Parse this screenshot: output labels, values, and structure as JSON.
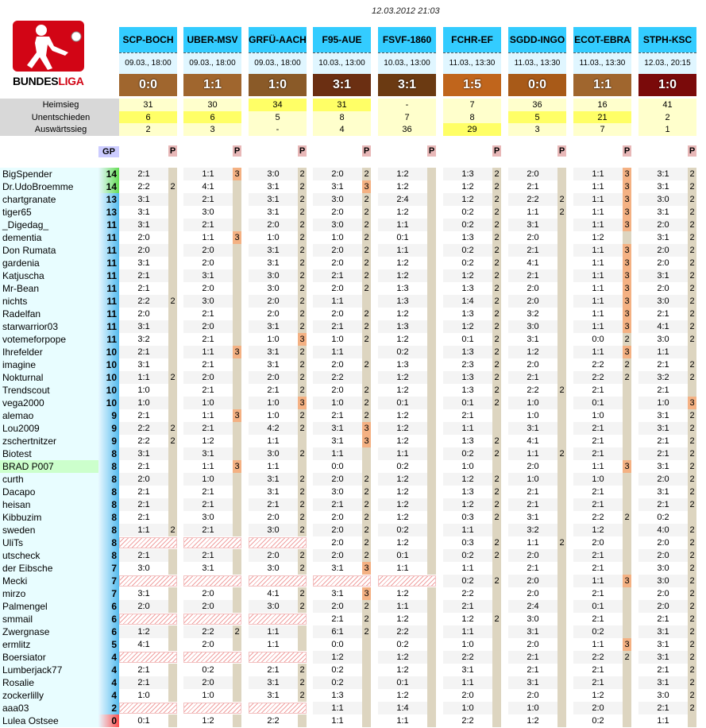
{
  "timestamp": "12.03.2012 21:03",
  "logo": {
    "word1": "BUNDES",
    "word2": "LIGA"
  },
  "matches": [
    {
      "code": "SCP-BOCH",
      "date": "09.03., 18:00",
      "result": "0:0",
      "color": "#a0662e"
    },
    {
      "code": "UBER-MSV",
      "date": "09.03., 18:00",
      "result": "1:1",
      "color": "#a0662e"
    },
    {
      "code": "GRFÜ-AACH",
      "date": "09.03., 18:00",
      "result": "1:0",
      "color": "#8a5a28"
    },
    {
      "code": "F95-AUE",
      "date": "10.03., 13:00",
      "result": "3:1",
      "color": "#6b2f12"
    },
    {
      "code": "FSVF-1860",
      "date": "10.03., 13:00",
      "result": "3:1",
      "color": "#6b3a12"
    },
    {
      "code": "FCHR-EF",
      "date": "11.03., 13:30",
      "result": "1:5",
      "color": "#c0651c"
    },
    {
      "code": "SGDD-INGO",
      "date": "11.03., 13:30",
      "result": "0:0",
      "color": "#a85a18"
    },
    {
      "code": "ECOT-EBRA",
      "date": "11.03., 13:30",
      "result": "1:1",
      "color": "#a0662e"
    },
    {
      "code": "STPH-KSC",
      "date": "12.03., 20:15",
      "result": "1:0",
      "color": "#7a0a0a"
    }
  ],
  "stats": {
    "labels": [
      "Heimsieg",
      "Unentschieden",
      "Auswärtssieg"
    ],
    "values": [
      [
        "31",
        "30",
        "34",
        "31",
        "-",
        "7",
        "36",
        "16",
        "41"
      ],
      [
        "6",
        "6",
        "5",
        "8",
        "7",
        "8",
        "5",
        "21",
        "2"
      ],
      [
        "2",
        "3",
        "-",
        "4",
        "36",
        "29",
        "3",
        "7",
        "1"
      ]
    ],
    "highlight": [
      [
        0,
        0,
        1,
        1,
        0,
        0,
        0,
        0,
        0
      ],
      [
        1,
        1,
        0,
        0,
        0,
        0,
        1,
        1,
        0
      ],
      [
        0,
        0,
        0,
        0,
        0,
        1,
        0,
        0,
        0
      ]
    ]
  },
  "headers": {
    "gp": "GP",
    "p": "P"
  },
  "players": [
    {
      "name": "BigSpender",
      "gp": "14",
      "tips": [
        "2:1",
        "1:1",
        "3:0",
        "2:0",
        "1:2",
        "1:3",
        "2:0",
        "1:1",
        "3:1"
      ],
      "pts": [
        "",
        "3",
        "2",
        "2",
        "",
        "2",
        "",
        "3",
        "2"
      ]
    },
    {
      "name": "Dr.UdoBroemme",
      "gp": "14",
      "tips": [
        "2:2",
        "4:1",
        "3:1",
        "3:1",
        "1:2",
        "1:2",
        "2:1",
        "1:1",
        "3:1"
      ],
      "pts": [
        "2",
        "",
        "2",
        "3",
        "",
        "2",
        "",
        "3",
        "2"
      ]
    },
    {
      "name": "chartgranate",
      "gp": "13",
      "tips": [
        "3:1",
        "2:1",
        "3:1",
        "3:0",
        "2:4",
        "1:2",
        "2:2",
        "1:1",
        "3:0"
      ],
      "pts": [
        "",
        "",
        "2",
        "2",
        "",
        "2",
        "2",
        "3",
        "2"
      ]
    },
    {
      "name": "tiger65",
      "gp": "13",
      "tips": [
        "3:1",
        "3:0",
        "3:1",
        "2:0",
        "1:2",
        "0:2",
        "1:1",
        "1:1",
        "3:1"
      ],
      "pts": [
        "",
        "",
        "2",
        "2",
        "",
        "2",
        "2",
        "3",
        "2"
      ]
    },
    {
      "name": "_Digedag_",
      "gp": "11",
      "tips": [
        "3:1",
        "2:1",
        "2:0",
        "3:0",
        "1:1",
        "0:2",
        "3:1",
        "1:1",
        "2:0"
      ],
      "pts": [
        "",
        "",
        "2",
        "2",
        "",
        "2",
        "",
        "3",
        "2"
      ]
    },
    {
      "name": "dementia",
      "gp": "11",
      "tips": [
        "2:0",
        "1:1",
        "1:0",
        "1:0",
        "0:1",
        "1:3",
        "2:0",
        "1:2",
        "3:1"
      ],
      "pts": [
        "",
        "3",
        "2",
        "2",
        "",
        "2",
        "",
        "",
        "2"
      ]
    },
    {
      "name": "Don Rumata",
      "gp": "11",
      "tips": [
        "2:0",
        "2:0",
        "3:1",
        "2:0",
        "1:1",
        "0:2",
        "2:1",
        "1:1",
        "2:0"
      ],
      "pts": [
        "",
        "",
        "2",
        "2",
        "",
        "2",
        "",
        "3",
        "2"
      ]
    },
    {
      "name": "gardenia",
      "gp": "11",
      "tips": [
        "3:1",
        "2:0",
        "3:1",
        "2:0",
        "1:2",
        "0:2",
        "4:1",
        "1:1",
        "2:0"
      ],
      "pts": [
        "",
        "",
        "2",
        "2",
        "",
        "2",
        "",
        "3",
        "2"
      ]
    },
    {
      "name": "Katjuscha",
      "gp": "11",
      "tips": [
        "2:1",
        "3:1",
        "3:0",
        "2:1",
        "1:2",
        "1:2",
        "2:1",
        "1:1",
        "3:1"
      ],
      "pts": [
        "",
        "",
        "2",
        "2",
        "",
        "2",
        "",
        "3",
        "2"
      ]
    },
    {
      "name": "Mr-Bean",
      "gp": "11",
      "tips": [
        "2:1",
        "2:0",
        "3:0",
        "2:0",
        "1:3",
        "1:3",
        "2:0",
        "1:1",
        "2:0"
      ],
      "pts": [
        "",
        "",
        "2",
        "2",
        "",
        "2",
        "",
        "3",
        "2"
      ]
    },
    {
      "name": "nichts",
      "gp": "11",
      "tips": [
        "2:2",
        "3:0",
        "2:0",
        "1:1",
        "1:3",
        "1:4",
        "2:0",
        "1:1",
        "3:0"
      ],
      "pts": [
        "2",
        "",
        "2",
        "",
        "",
        "2",
        "",
        "3",
        "2"
      ]
    },
    {
      "name": "Radelfan",
      "gp": "11",
      "tips": [
        "2:0",
        "2:1",
        "2:0",
        "2:0",
        "1:2",
        "1:3",
        "3:2",
        "1:1",
        "2:1"
      ],
      "pts": [
        "",
        "",
        "2",
        "2",
        "",
        "2",
        "",
        "3",
        "2"
      ]
    },
    {
      "name": "starwarrior03",
      "gp": "11",
      "tips": [
        "3:1",
        "2:0",
        "3:1",
        "2:1",
        "1:3",
        "1:2",
        "3:0",
        "1:1",
        "4:1"
      ],
      "pts": [
        "",
        "",
        "2",
        "2",
        "",
        "2",
        "",
        "3",
        "2"
      ]
    },
    {
      "name": "votemeforpope",
      "gp": "11",
      "tips": [
        "3:2",
        "2:1",
        "1:0",
        "1:0",
        "1:2",
        "0:1",
        "3:1",
        "0:0",
        "3:0"
      ],
      "pts": [
        "",
        "",
        "3",
        "2",
        "",
        "2",
        "",
        "2",
        "2"
      ]
    },
    {
      "name": "Ihrefelder",
      "gp": "10",
      "tips": [
        "2:1",
        "1:1",
        "3:1",
        "1:1",
        "0:2",
        "1:3",
        "1:2",
        "1:1",
        "1:1"
      ],
      "pts": [
        "",
        "3",
        "2",
        "",
        "",
        "2",
        "",
        "3",
        ""
      ]
    },
    {
      "name": "imagine",
      "gp": "10",
      "tips": [
        "3:1",
        "2:1",
        "3:1",
        "2:0",
        "1:3",
        "2:3",
        "2:0",
        "2:2",
        "2:1"
      ],
      "pts": [
        "",
        "",
        "2",
        "2",
        "",
        "2",
        "",
        "2",
        "2"
      ]
    },
    {
      "name": "Nokturnal",
      "gp": "10",
      "tips": [
        "1:1",
        "2:0",
        "2:0",
        "2:2",
        "1:2",
        "1:3",
        "2:1",
        "2:2",
        "3:2"
      ],
      "pts": [
        "2",
        "",
        "2",
        "",
        "",
        "2",
        "",
        "2",
        "2"
      ]
    },
    {
      "name": "Trendscout",
      "gp": "10",
      "tips": [
        "1:0",
        "2:1",
        "2:1",
        "2:0",
        "1:2",
        "1:3",
        "2:2",
        "2:1",
        "2:1"
      ],
      "pts": [
        "",
        "",
        "2",
        "2",
        "",
        "2",
        "2",
        "",
        ""
      ]
    },
    {
      "name": "vega2000",
      "gp": "10",
      "tips": [
        "1:0",
        "1:0",
        "1:0",
        "1:0",
        "0:1",
        "0:1",
        "1:0",
        "0:1",
        "1:0"
      ],
      "pts": [
        "",
        "",
        "3",
        "2",
        "",
        "2",
        "",
        "",
        "3"
      ]
    },
    {
      "name": "alemao",
      "gp": "9",
      "tips": [
        "2:1",
        "1:1",
        "1:0",
        "2:1",
        "1:2",
        "2:1",
        "1:0",
        "1:0",
        "3:1"
      ],
      "pts": [
        "",
        "3",
        "2",
        "2",
        "",
        "",
        "",
        "",
        "2"
      ]
    },
    {
      "name": "Lou2009",
      "gp": "9",
      "tips": [
        "2:2",
        "2:1",
        "4:2",
        "3:1",
        "1:2",
        "1:1",
        "3:1",
        "2:1",
        "3:1"
      ],
      "pts": [
        "2",
        "",
        "2",
        "3",
        "",
        "",
        "",
        "",
        "2"
      ]
    },
    {
      "name": "zschertnitzer",
      "gp": "9",
      "tips": [
        "2:2",
        "1:2",
        "1:1",
        "3:1",
        "1:2",
        "1:3",
        "4:1",
        "2:1",
        "2:1"
      ],
      "pts": [
        "2",
        "",
        "",
        "3",
        "",
        "2",
        "",
        "",
        "2"
      ]
    },
    {
      "name": "Biotest",
      "gp": "8",
      "tips": [
        "3:1",
        "3:1",
        "3:0",
        "1:1",
        "1:1",
        "0:2",
        "1:1",
        "2:1",
        "2:1"
      ],
      "pts": [
        "",
        "",
        "2",
        "",
        "",
        "2",
        "2",
        "",
        "2"
      ]
    },
    {
      "name": "BRAD P007",
      "gp": "8",
      "tips": [
        "2:1",
        "1:1",
        "1:1",
        "0:0",
        "0:2",
        "1:0",
        "2:0",
        "1:1",
        "3:1"
      ],
      "pts": [
        "",
        "3",
        "",
        "",
        "",
        "",
        "",
        "3",
        "2"
      ],
      "green": true
    },
    {
      "name": "curth",
      "gp": "8",
      "tips": [
        "2:0",
        "1:0",
        "3:1",
        "2:0",
        "1:2",
        "1:2",
        "1:0",
        "1:0",
        "2:0"
      ],
      "pts": [
        "",
        "",
        "2",
        "2",
        "",
        "2",
        "",
        "",
        "2"
      ]
    },
    {
      "name": "Dacapo",
      "gp": "8",
      "tips": [
        "2:1",
        "2:1",
        "3:1",
        "3:0",
        "1:2",
        "1:3",
        "2:1",
        "2:1",
        "3:1"
      ],
      "pts": [
        "",
        "",
        "2",
        "2",
        "",
        "2",
        "",
        "",
        "2"
      ]
    },
    {
      "name": "heisan",
      "gp": "8",
      "tips": [
        "2:1",
        "2:1",
        "2:1",
        "2:1",
        "1:2",
        "1:2",
        "2:1",
        "2:1",
        "2:1"
      ],
      "pts": [
        "",
        "",
        "2",
        "2",
        "",
        "2",
        "",
        "",
        "2"
      ]
    },
    {
      "name": "Kibbuzim",
      "gp": "8",
      "tips": [
        "2:1",
        "3:0",
        "2:0",
        "2:0",
        "1:2",
        "0:3",
        "3:1",
        "2:2",
        "0:2"
      ],
      "pts": [
        "",
        "",
        "2",
        "2",
        "",
        "2",
        "",
        "2",
        ""
      ]
    },
    {
      "name": "sweden",
      "gp": "8",
      "tips": [
        "1:1",
        "2:1",
        "3:0",
        "2:0",
        "0:2",
        "1:1",
        "3:2",
        "1:2",
        "4:0"
      ],
      "pts": [
        "2",
        "",
        "2",
        "2",
        "",
        "",
        "",
        "",
        "2"
      ]
    },
    {
      "name": "UliTs",
      "gp": "8",
      "tips": [
        "",
        "",
        "",
        "2:0",
        "1:2",
        "0:3",
        "1:1",
        "2:0",
        "2:0"
      ],
      "pts": [
        "",
        "",
        "",
        "2",
        "",
        "2",
        "2",
        "",
        "2"
      ],
      "missing": [
        0,
        1,
        2
      ]
    },
    {
      "name": "utscheck",
      "gp": "8",
      "tips": [
        "2:1",
        "2:1",
        "2:0",
        "2:0",
        "0:1",
        "0:2",
        "2:0",
        "2:1",
        "2:0"
      ],
      "pts": [
        "",
        "",
        "2",
        "2",
        "",
        "2",
        "",
        "",
        "2"
      ]
    },
    {
      "name": "der Eibsche",
      "gp": "7",
      "tips": [
        "3:0",
        "3:1",
        "3:0",
        "3:1",
        "1:1",
        "1:1",
        "2:1",
        "2:1",
        "3:0"
      ],
      "pts": [
        "",
        "",
        "2",
        "3",
        "",
        "",
        "",
        "",
        "2"
      ]
    },
    {
      "name": "Mecki",
      "gp": "7",
      "tips": [
        "",
        "",
        "",
        "",
        "",
        "0:2",
        "2:0",
        "1:1",
        "3:0"
      ],
      "pts": [
        "",
        "",
        "",
        "",
        "",
        "2",
        "",
        "3",
        "2"
      ],
      "missing": [
        0,
        1,
        2,
        3,
        4
      ]
    },
    {
      "name": "mirzo",
      "gp": "7",
      "tips": [
        "3:1",
        "2:0",
        "4:1",
        "3:1",
        "1:2",
        "2:2",
        "2:0",
        "2:1",
        "2:0"
      ],
      "pts": [
        "",
        "",
        "2",
        "3",
        "",
        "",
        "",
        "",
        "2"
      ]
    },
    {
      "name": "Palmengel",
      "gp": "6",
      "tips": [
        "2:0",
        "2:0",
        "3:0",
        "2:0",
        "1:1",
        "2:1",
        "2:4",
        "0:1",
        "2:0"
      ],
      "pts": [
        "",
        "",
        "2",
        "2",
        "",
        "",
        "",
        "",
        "2"
      ]
    },
    {
      "name": "smmail",
      "gp": "6",
      "tips": [
        "",
        "",
        "",
        "2:1",
        "1:2",
        "1:2",
        "3:0",
        "2:1",
        "2:1"
      ],
      "pts": [
        "",
        "",
        "",
        "2",
        "",
        "2",
        "",
        "",
        "2"
      ],
      "missing": [
        0,
        1,
        2
      ]
    },
    {
      "name": "Zwergnase",
      "gp": "6",
      "tips": [
        "1:2",
        "2:2",
        "1:1",
        "6:1",
        "2:2",
        "1:1",
        "3:1",
        "0:2",
        "3:1"
      ],
      "pts": [
        "",
        "2",
        "",
        "2",
        "",
        "",
        "",
        "",
        "2"
      ]
    },
    {
      "name": "ermlitz",
      "gp": "5",
      "tips": [
        "4:1",
        "2:0",
        "1:1",
        "0:0",
        "0:2",
        "1:0",
        "2:0",
        "1:1",
        "3:1"
      ],
      "pts": [
        "",
        "",
        "",
        "",
        "",
        "",
        "",
        "3",
        "2"
      ]
    },
    {
      "name": "Boersiator",
      "gp": "4",
      "tips": [
        "",
        "",
        "",
        "1:2",
        "1:2",
        "2:2",
        "2:1",
        "2:2",
        "3:1"
      ],
      "pts": [
        "",
        "",
        "",
        "",
        "",
        "",
        "",
        "2",
        "2"
      ],
      "missing": [
        0,
        1,
        2
      ]
    },
    {
      "name": "Lumberjack77",
      "gp": "4",
      "tips": [
        "2:1",
        "0:2",
        "2:1",
        "0:2",
        "1:2",
        "3:1",
        "2:1",
        "2:1",
        "2:1"
      ],
      "pts": [
        "",
        "",
        "2",
        "",
        "",
        "",
        "",
        "",
        "2"
      ]
    },
    {
      "name": "Rosalie",
      "gp": "4",
      "tips": [
        "2:1",
        "2:0",
        "3:1",
        "0:2",
        "0:1",
        "1:1",
        "3:1",
        "2:1",
        "3:1"
      ],
      "pts": [
        "",
        "",
        "2",
        "",
        "",
        "",
        "",
        "",
        "2"
      ]
    },
    {
      "name": "zockerlilly",
      "gp": "4",
      "tips": [
        "1:0",
        "1:0",
        "3:1",
        "1:3",
        "1:2",
        "2:0",
        "2:0",
        "1:2",
        "3:0"
      ],
      "pts": [
        "",
        "",
        "2",
        "",
        "",
        "",
        "",
        "",
        "2"
      ]
    },
    {
      "name": "aaa03",
      "gp": "2",
      "tips": [
        "",
        "",
        "",
        "1:1",
        "1:4",
        "1:0",
        "1:0",
        "2:0",
        "2:1"
      ],
      "pts": [
        "",
        "",
        "",
        "",
        "",
        "",
        "",
        "",
        "2"
      ],
      "missing": [
        0,
        1,
        2
      ]
    },
    {
      "name": "Lulea Ostsee",
      "gp": "0",
      "tips": [
        "0:1",
        "1:2",
        "2:2",
        "1:1",
        "1:1",
        "2:2",
        "1:2",
        "0:2",
        "1:1"
      ],
      "pts": [
        "",
        "",
        "",
        "",
        "",
        "",
        "",
        "",
        ""
      ]
    }
  ]
}
